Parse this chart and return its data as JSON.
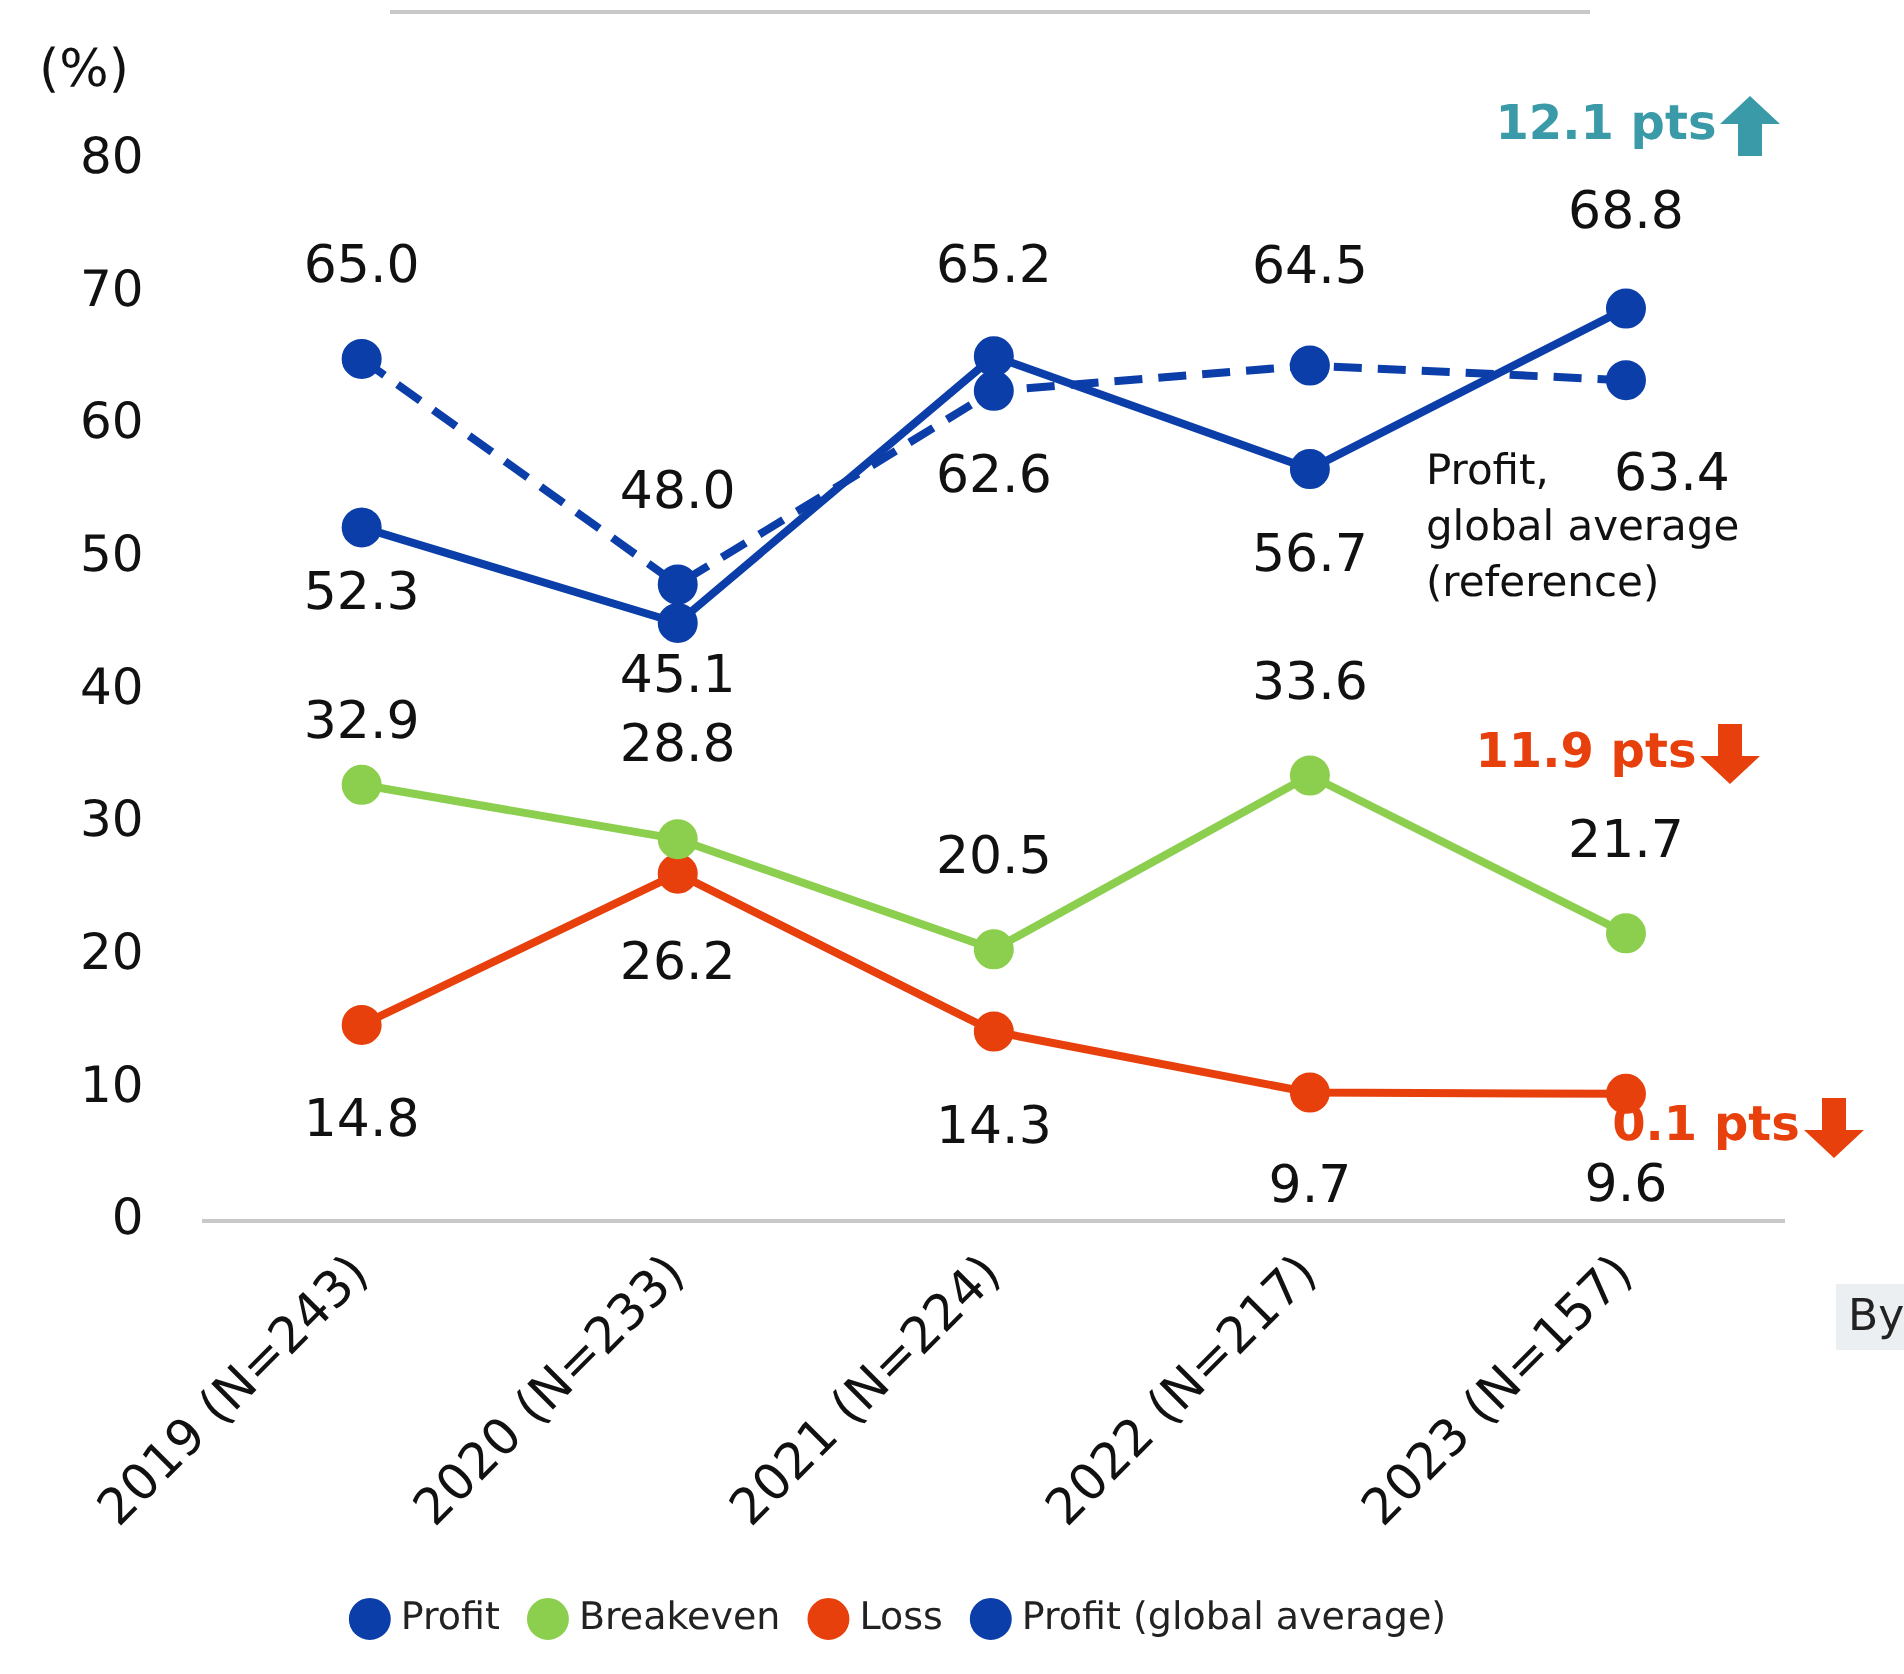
{
  "chart_data": {
    "type": "line",
    "ylabel": "(%)",
    "categories": [
      "2019 (N=243)",
      "2020 (N=233)",
      "2021 (N=224)",
      "2022 (N=217)",
      "2023 (N=157)"
    ],
    "series": [
      {
        "name": "Profit",
        "color": "#0b3ea8",
        "values": [
          52.3,
          45.1,
          65.2,
          56.7,
          68.8
        ],
        "value_labels": [
          "52.3",
          "45.1",
          "65.2",
          "56.7",
          "68.8"
        ]
      },
      {
        "name": "Breakeven",
        "color": "#8ccf4e",
        "values": [
          32.9,
          28.8,
          20.5,
          33.6,
          21.7
        ],
        "value_labels": [
          "32.9",
          "28.8",
          "20.5",
          "33.6",
          "21.7"
        ]
      },
      {
        "name": "Loss",
        "color": "#e8400c",
        "values": [
          14.8,
          26.2,
          14.3,
          9.7,
          9.6
        ],
        "value_labels": [
          "14.8",
          "26.2",
          "14.3",
          "9.7",
          "9.6"
        ]
      },
      {
        "name": "Profit (global average)",
        "color": "#0b3ea8",
        "line_style": "dashed",
        "values": [
          65.0,
          48.0,
          62.6,
          64.5,
          63.4
        ],
        "value_labels": [
          "65.0",
          "48.0",
          "62.6",
          "64.5",
          "63.4"
        ]
      }
    ],
    "ylim": [
      0,
      80
    ],
    "yticks": [
      0,
      10,
      20,
      30,
      40,
      50,
      60,
      70,
      80
    ],
    "grid": false,
    "legend": "bottom",
    "marker": "circle",
    "annotations": [
      "12.1 pts",
      "11.9 pts",
      "0.1 pts",
      "Profit, global average (reference)",
      "By"
    ]
  }
}
